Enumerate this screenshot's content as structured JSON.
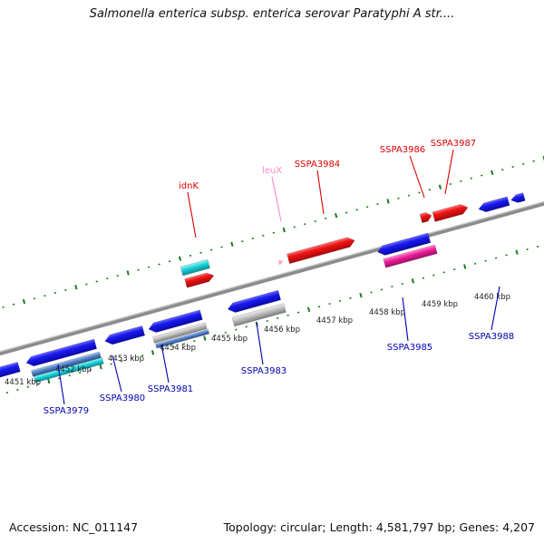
{
  "title": "Salmonella enterica subsp. enterica serovar Paratyphi A str....",
  "footer": {
    "accession": "Accession: NC_011147",
    "topology": "Topology: circular; Length: 4,581,797 bp; Genes: 4,207"
  },
  "colors": {
    "backbone": "#8a8a8a",
    "ticks": "#1e7a1e",
    "forward_label": "#dd0000",
    "reverse_label": "#0000b0",
    "trna_label": "#ff88cc",
    "blue": "#1010e0",
    "red": "#ee1010",
    "cyan": "#18d0d8",
    "gray": "#b8b8b8",
    "magenta": "#ee1c9a"
  },
  "tick_labels": [
    {
      "text": "4451 kbp",
      "kbp": 4451
    },
    {
      "text": "4452 kbp",
      "kbp": 4452
    },
    {
      "text": "4453 kbp",
      "kbp": 4453
    },
    {
      "text": "4454 kbp",
      "kbp": 4454
    },
    {
      "text": "4455 kbp",
      "kbp": 4455
    },
    {
      "text": "4456 kbp",
      "kbp": 4456
    },
    {
      "text": "4457 kbp",
      "kbp": 4457
    },
    {
      "text": "4458 kbp",
      "kbp": 4458
    },
    {
      "text": "4459 kbp",
      "kbp": 4459
    },
    {
      "text": "4460 kbp",
      "kbp": 4460
    }
  ],
  "labels": [
    {
      "name": "idnK",
      "style": "forward"
    },
    {
      "name": "leuX",
      "style": "trna"
    },
    {
      "name": "SSPA3984",
      "style": "forward"
    },
    {
      "name": "SSPA3986",
      "style": "forward"
    },
    {
      "name": "SSPA3987",
      "style": "forward"
    },
    {
      "name": "SSPA3979",
      "style": "reverse"
    },
    {
      "name": "SSPA3980",
      "style": "reverse"
    },
    {
      "name": "SSPA3981",
      "style": "reverse"
    },
    {
      "name": "SSPA3983",
      "style": "reverse"
    },
    {
      "name": "SSPA3985",
      "style": "reverse"
    },
    {
      "name": "SSPA3988",
      "style": "reverse"
    }
  ]
}
